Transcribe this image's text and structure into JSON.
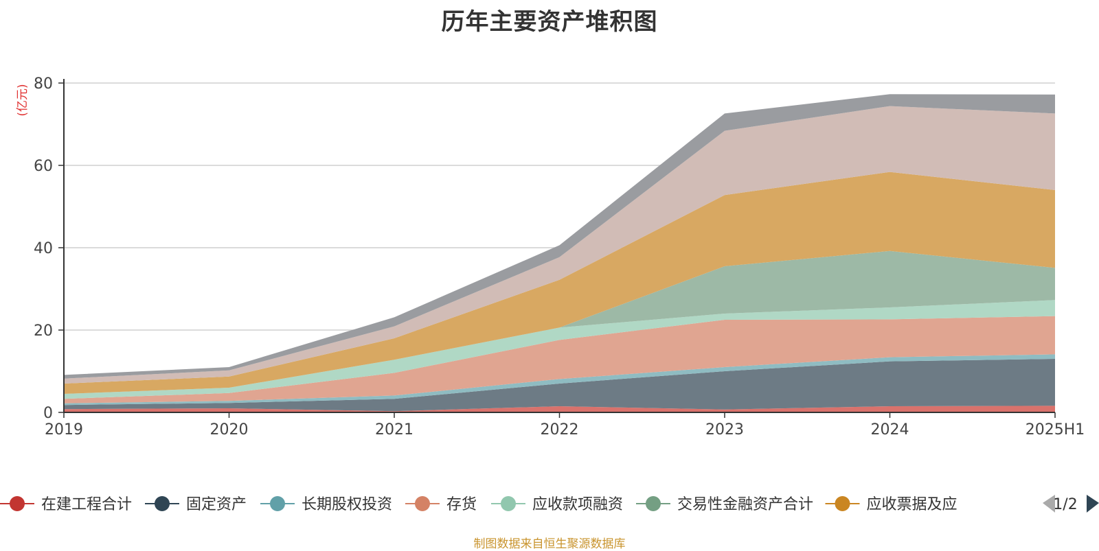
{
  "chart_data": {
    "type": "area",
    "stacked": true,
    "title": "历年主要资产堆积图",
    "ylabel": "(亿元)",
    "xlabel": "",
    "categories": [
      "2019",
      "2020",
      "2021",
      "2022",
      "2023",
      "2024",
      "2025H1"
    ],
    "ylim": [
      0,
      80
    ],
    "yticks": [
      0,
      20,
      40,
      60,
      80
    ],
    "grid": true,
    "legend_position": "bottom",
    "legend_page": "1/2",
    "series": [
      {
        "name": "在建工程合计",
        "color": "#c23531",
        "fill": "#d9726c",
        "values": [
          0.8,
          1.0,
          0.3,
          1.5,
          0.7,
          1.5,
          1.6
        ]
      },
      {
        "name": "固定资产",
        "color": "#2f4554",
        "fill": "#6d7b85",
        "values": [
          1.0,
          1.3,
          3.0,
          5.5,
          9.3,
          10.9,
          11.4
        ]
      },
      {
        "name": "长期股权投资",
        "color": "#61a0a8",
        "fill": "#8fbcc2",
        "values": [
          0.4,
          0.5,
          0.8,
          1.1,
          1.0,
          1.0,
          1.1
        ]
      },
      {
        "name": "存货",
        "color": "#d48265",
        "fill": "#e0a591",
        "values": [
          1.1,
          1.9,
          5.5,
          9.5,
          11.5,
          9.2,
          9.3
        ]
      },
      {
        "name": "应收款项融资",
        "color": "#91c7ae",
        "fill": "#b0d8c5",
        "values": [
          1.2,
          1.3,
          3.2,
          3.0,
          1.5,
          2.9,
          3.9
        ]
      },
      {
        "name": "交易性金融资产合计",
        "color": "#749f83",
        "fill": "#9db9a6",
        "values": [
          0,
          0,
          0,
          0,
          11.5,
          13.7,
          7.8
        ]
      },
      {
        "name": "应收票据及应",
        "color": "#ca8622",
        "fill": "#d8a862",
        "values": [
          2.5,
          2.7,
          5.2,
          11.6,
          17.3,
          19.2,
          18.9
        ]
      },
      {
        "name": "",
        "color": "#bda29a",
        "fill": "#d1bcb6",
        "values": [
          1.2,
          1.5,
          2.9,
          5.5,
          15.6,
          16.0,
          18.6
        ]
      },
      {
        "name": "",
        "color": "#6e7074",
        "fill": "#9a9ca0",
        "values": [
          0.9,
          0.8,
          2.2,
          2.9,
          4.2,
          2.9,
          4.6
        ]
      }
    ]
  },
  "source_note": "制图数据来自恒生聚源数据库",
  "icons": {
    "prev_page": "triangle-left-icon",
    "next_page": "triangle-right-icon"
  }
}
